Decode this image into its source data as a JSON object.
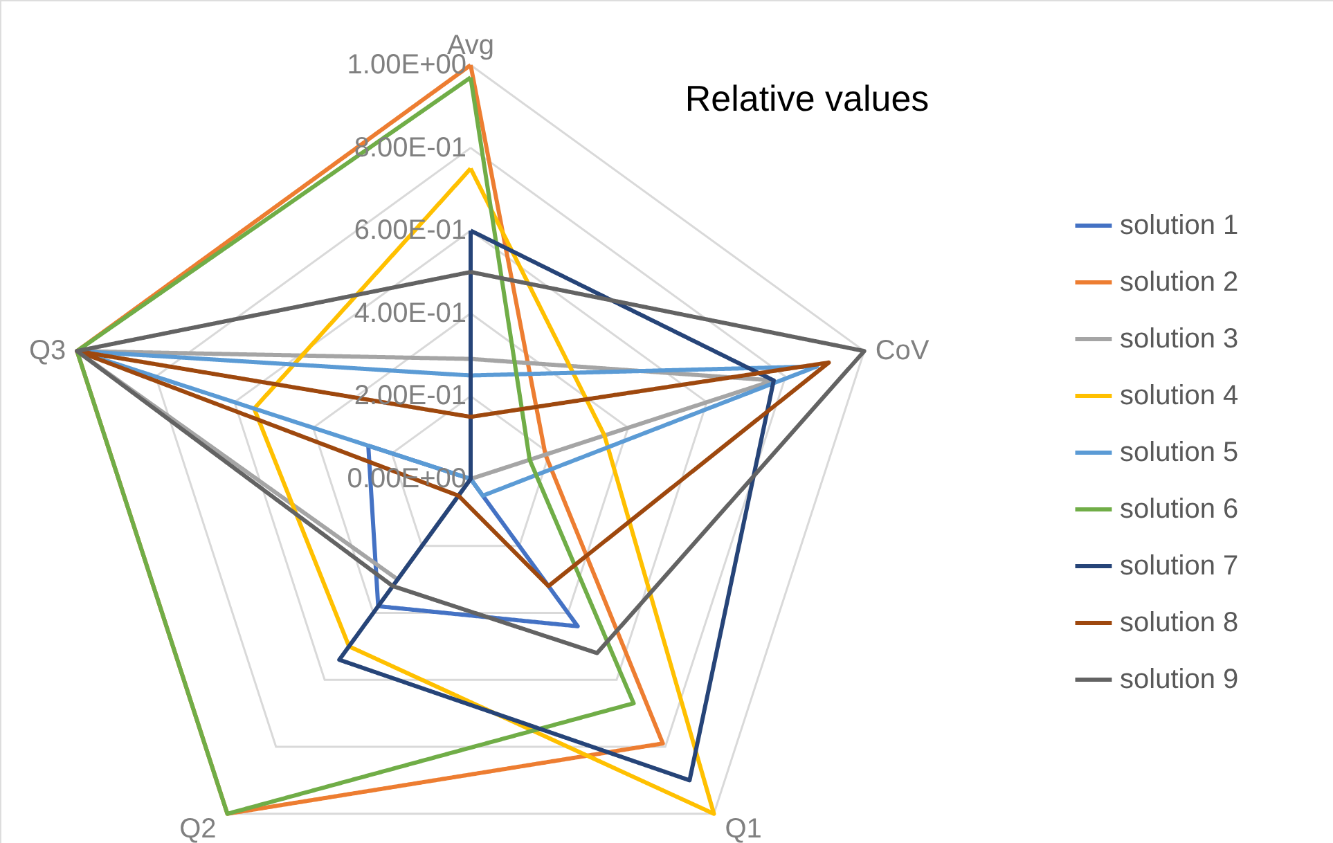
{
  "chart_data": {
    "type": "radar",
    "title": "Relative values",
    "categories": [
      "Avg",
      "CoV",
      "Q1",
      "Q2",
      "Q3"
    ],
    "ylim": [
      0,
      1
    ],
    "yticks": [
      {
        "value": 0,
        "label": "0.00E+00"
      },
      {
        "value": 0.2,
        "label": "2.00E-01"
      },
      {
        "value": 0.4,
        "label": "4.00E-01"
      },
      {
        "value": 0.6,
        "label": "6.00E-01"
      },
      {
        "value": 0.8,
        "label": "8.00E-01"
      },
      {
        "value": 1,
        "label": "1.00E+00"
      }
    ],
    "grid": true,
    "legend": "right",
    "marker": "none",
    "line_style": "solid",
    "series": [
      {
        "name": "solution 1",
        "color": "#4472c4",
        "values": [
          0,
          0,
          0.44,
          0.38,
          0.26
        ]
      },
      {
        "name": "solution 2",
        "color": "#ed7d31",
        "values": [
          1,
          0.19,
          0.79,
          1,
          1
        ]
      },
      {
        "name": "solution 3",
        "color": "#a5a5a5",
        "values": [
          0.29,
          0.77,
          0,
          0.3,
          1
        ]
      },
      {
        "name": "solution 4",
        "color": "#ffc000",
        "values": [
          0.75,
          0.34,
          1,
          0.5,
          0.55
        ]
      },
      {
        "name": "solution 5",
        "color": "#5b9bd5",
        "values": [
          0.25,
          0.88,
          0.05,
          0,
          1
        ]
      },
      {
        "name": "solution 6",
        "color": "#70ad47",
        "values": [
          0.97,
          0.15,
          0.67,
          1,
          1
        ]
      },
      {
        "name": "solution 7",
        "color": "#264478",
        "values": [
          0.6,
          0.77,
          0.9,
          0.54,
          0
        ]
      },
      {
        "name": "solution 8",
        "color": "#9e480e",
        "values": [
          0.15,
          0.91,
          0.32,
          0.05,
          1
        ]
      },
      {
        "name": "solution 9",
        "color": "#636363",
        "values": [
          0.5,
          1,
          0.52,
          0.32,
          1
        ]
      }
    ]
  }
}
